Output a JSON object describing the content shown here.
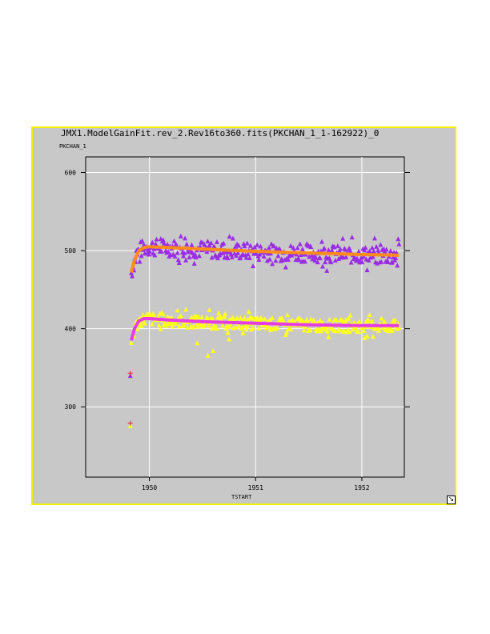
{
  "window": {
    "title": "JMX1.ModelGainFit.rev_2.Rev16to360.fits(PKCHAN_1_1-162922)_0"
  },
  "chart_data": {
    "type": "scatter",
    "title": "JMX1.ModelGainFit.rev_2.Rev16to360.fits(PKCHAN_1_1-162922)_0",
    "xlabel": "TSTART",
    "ylabel": "PKCHAN_1",
    "xlim": [
      1949.4,
      1952.4
    ],
    "ylim": [
      210,
      620
    ],
    "x_ticks": [
      1950,
      1951,
      1952
    ],
    "y_ticks": [
      300,
      400,
      500,
      600
    ],
    "grid": true,
    "colors": {
      "upper_points": "#9a2de6",
      "upper_fit": "#ff8c1a",
      "lower_points": "#ffff1e",
      "lower_fit": "#e63ce6",
      "outlier_marker": "#e8203c",
      "background": "#c8c8c8",
      "plot_area": "#c8c8c8",
      "frame_border": "#f0f000",
      "grid": "#ffffff"
    },
    "series": [
      {
        "marker": "triangle",
        "values_summary": "scatter around fit, approx 470-515",
        "x_range": [
          1949.83,
          1952.35
        ],
        "level": 500,
        "spread": 14,
        "start": 472
      },
      {
        "marker": "line",
        "x": [
          1949.83,
          1949.86,
          1949.9,
          1949.95,
          1950.0,
          1950.2,
          1950.5,
          1951.0,
          1951.5,
          1952.0,
          1952.35
        ],
        "y": [
          472,
          488,
          500,
          504,
          505,
          504,
          502,
          499,
          497,
          495,
          494
        ]
      },
      {
        "marker": "triangle",
        "values_summary": "scatter around fit, approx 365-422",
        "x_range": [
          1949.83,
          1952.35
        ],
        "level": 406,
        "spread": 10,
        "start": 385,
        "extra_points": [
          [
            1949.82,
            340
          ],
          [
            1949.82,
            276
          ],
          [
            1950.55,
            366
          ],
          [
            1950.6,
            372
          ],
          [
            1950.45,
            382
          ],
          [
            1950.75,
            387
          ]
        ]
      },
      {
        "marker": "line",
        "x": [
          1949.83,
          1949.86,
          1949.9,
          1949.95,
          1950.0,
          1950.2,
          1950.5,
          1951.0,
          1951.5,
          1952.0,
          1952.35
        ],
        "y": [
          385,
          400,
          410,
          413,
          413,
          411,
          409,
          407,
          405,
          404,
          404
        ]
      },
      {
        "marker": "plus",
        "x": [
          1949.82,
          1949.82
        ],
        "y": [
          343,
          279
        ]
      }
    ]
  }
}
